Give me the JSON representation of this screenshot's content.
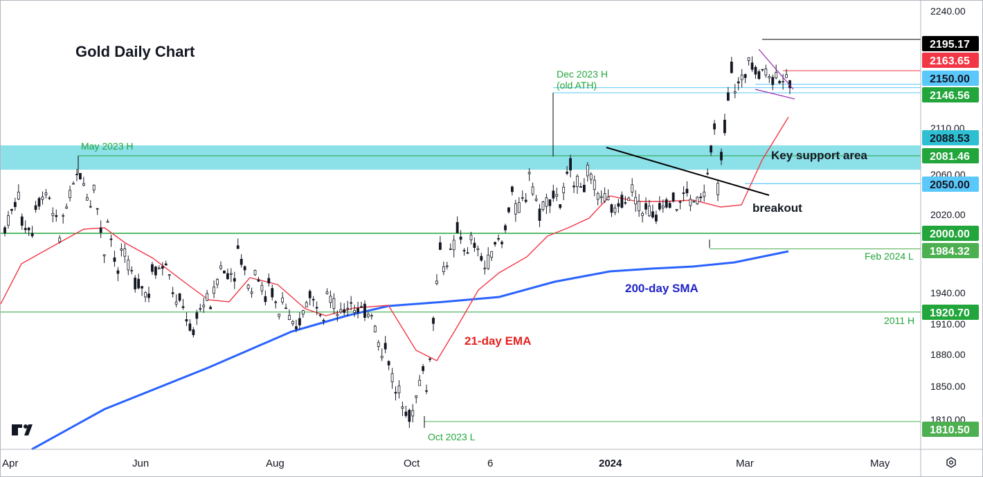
{
  "chart_data": {
    "type": "candlestick",
    "title": "Gold Daily Chart",
    "y_range": [
      1795,
      2255
    ],
    "y_ticks": [
      "2240.00",
      "2110.00",
      "2060.00",
      "2020.00",
      "1940.00",
      "1910.00",
      "1880.00",
      "1850.00",
      "1810.00"
    ],
    "x_labels": [
      "Apr",
      "Jun",
      "Aug",
      "Oct",
      "6",
      "2024",
      "Mar",
      "May"
    ],
    "price_labels": [
      {
        "value": 2195.17,
        "text": "2195.17",
        "bg": "#000000",
        "fg": "#ffffff"
      },
      {
        "value": 2163.65,
        "text": "2163.65",
        "bg": "#f23645",
        "fg": "#ffffff"
      },
      {
        "value": 2150.0,
        "text": "2150.00",
        "bg": "#5ac8fa",
        "fg": "#131722"
      },
      {
        "value": 2146.56,
        "text": "2146.56",
        "bg": "#22a53b",
        "fg": "#ffffff"
      },
      {
        "value": 2088.53,
        "text": "2088.53",
        "bg": "#2ebfd3",
        "fg": "#131722"
      },
      {
        "value": 2081.46,
        "text": "2081.46",
        "bg": "#22a53b",
        "fg": "#ffffff"
      },
      {
        "value": 2050.0,
        "text": "2050.00",
        "bg": "#5ac8fa",
        "fg": "#131722"
      },
      {
        "value": 2000.0,
        "text": "2000.00",
        "bg": "#22a53b",
        "fg": "#ffffff"
      },
      {
        "value": 1984.32,
        "text": "1984.32",
        "bg": "#4caf50",
        "fg": "#ffffff"
      },
      {
        "value": 1920.7,
        "text": "1920.70",
        "bg": "#22a53b",
        "fg": "#ffffff"
      },
      {
        "value": 1810.5,
        "text": "1810.50",
        "bg": "#4caf50",
        "fg": "#ffffff"
      }
    ],
    "support_zone": {
      "low": 2064,
      "high": 2088.53,
      "label": "Key support area",
      "color": "#7fdde6"
    },
    "horizontal_levels": [
      2000.0,
      1920.7,
      2050.0,
      2146.56,
      2150.0,
      2163.65,
      2195.17,
      1984.32,
      1810.5
    ],
    "annotations": {
      "may_high": "May 2023 H",
      "dec_high_line1": "Dec 2023 H",
      "dec_high_line2": "(old ATH)",
      "feb_low": "Feb 2024 L",
      "oct_low": "Oct 2023 L",
      "h2011": "2011 H",
      "breakout": "breakout",
      "sma": "200-day SMA",
      "ema": "21-day EMA"
    },
    "series": [
      {
        "name": "200-day SMA",
        "color": "#2962ff"
      },
      {
        "name": "21-day EMA",
        "color": "#f23645"
      }
    ],
    "price_path": [
      [
        2005,
        1975
      ],
      [
        2014,
        2040
      ],
      [
        2026,
        2000
      ],
      [
        2040,
        2045
      ],
      [
        2015,
        1985
      ],
      [
        2065,
        2060
      ],
      [
        2060,
        2025
      ],
      [
        2020,
        1965
      ],
      [
        1985,
        1940
      ],
      [
        1955,
        1950
      ],
      [
        1965,
        1935
      ],
      [
        1975,
        1965
      ],
      [
        1935,
        1915
      ],
      [
        1915,
        1895
      ],
      [
        1920,
        1935
      ],
      [
        1960,
        1975
      ],
      [
        1985,
        1960
      ],
      [
        1975,
        1940
      ],
      [
        1960,
        1930
      ],
      [
        1940,
        1910
      ],
      [
        1900,
        1895
      ],
      [
        1935,
        1940
      ],
      [
        1950,
        1920
      ],
      [
        1915,
        1915
      ],
      [
        1925,
        1935
      ],
      [
        1935,
        1920
      ],
      [
        1900,
        1870
      ],
      [
        1845,
        1830
      ],
      [
        1815,
        1810
      ],
      [
        1840,
        1880
      ],
      [
        1960,
        1995
      ],
      [
        2010,
        1990
      ],
      [
        1995,
        1970
      ],
      [
        1965,
        1970
      ],
      [
        1975,
        1995
      ],
      [
        2020,
        2050
      ],
      [
        2068,
        2040
      ],
      [
        2030,
        2005
      ],
      [
        2015,
        2040
      ],
      [
        2055,
        2075
      ],
      [
        2065,
        2045
      ],
      [
        2040,
        2030
      ],
      [
        2028,
        2020
      ],
      [
        2050,
        2040
      ],
      [
        2030,
        2015
      ],
      [
        2030,
        2010
      ],
      [
        2020,
        2035
      ],
      [
        2030,
        2045
      ],
      [
        2030,
        2035
      ],
      [
        2040,
        2120
      ],
      [
        2140,
        2170
      ],
      [
        2185,
        2160
      ],
      [
        2168,
        2155
      ],
      [
        2160,
        2152
      ],
      [
        2152,
        2150
      ]
    ]
  },
  "logo_text": "TV"
}
